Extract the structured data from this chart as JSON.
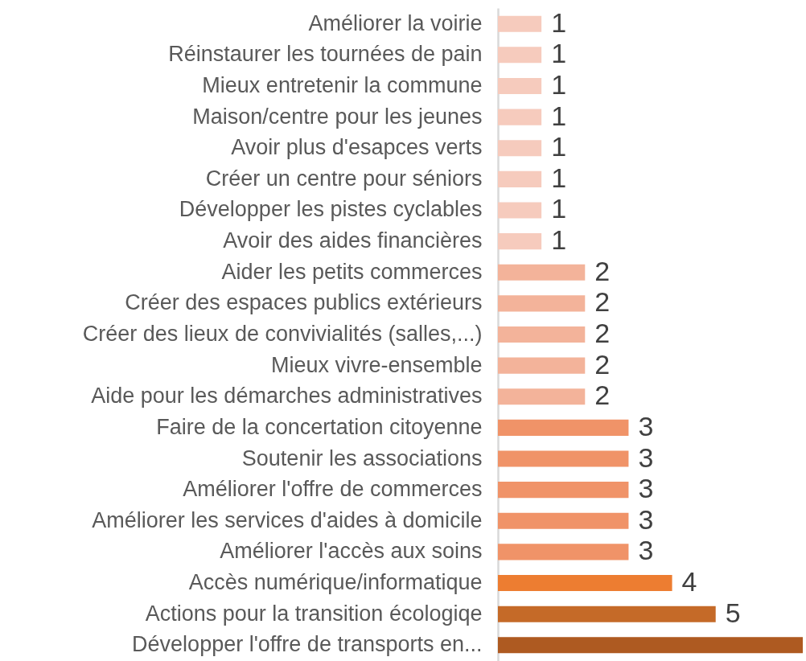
{
  "chart_data": {
    "type": "bar",
    "orientation": "horizontal",
    "categories": [
      "Améliorer la voirie",
      "Réinstaurer les tournées de pain",
      "Mieux entretenir la commune",
      "Maison/centre pour les jeunes",
      "Avoir plus d'esapces verts",
      "Créer un centre pour séniors",
      "Développer les pistes cyclables",
      "Avoir des aides financières",
      "Aider les petits commerces",
      "Créer des espaces publics extérieurs",
      "Créer des lieux de convivialités (salles,...)",
      "Mieux vivre-ensemble",
      "Aide pour les démarches administratives",
      "Faire de la concertation citoyenne",
      "Soutenir les associations",
      "Améliorer l'offre de commerces",
      "Améliorer les services d'aides à domicile",
      "Améliorer l'accès aux soins",
      "Accès numérique/informatique",
      "Actions pour la transition écologiqe",
      "Développer l'offre de transports en..."
    ],
    "values": [
      1,
      1,
      1,
      1,
      1,
      1,
      1,
      1,
      2,
      2,
      2,
      2,
      2,
      3,
      3,
      3,
      3,
      3,
      4,
      5,
      7
    ],
    "colors": [
      "#f6cbbd",
      "#f6cbbd",
      "#f6cbbd",
      "#f6cbbd",
      "#f6cbbd",
      "#f6cbbd",
      "#f6cbbd",
      "#f6cbbd",
      "#f3b39a",
      "#f3b39a",
      "#f3b39a",
      "#f3b39a",
      "#f3b39a",
      "#f09368",
      "#f09368",
      "#f09368",
      "#f09368",
      "#f09368",
      "#ed7d31",
      "#c56a28",
      "#ae5a21"
    ],
    "value_labels": [
      "1",
      "1",
      "1",
      "1",
      "1",
      "1",
      "1",
      "1",
      "2",
      "2",
      "2",
      "2",
      "2",
      "3",
      "3",
      "3",
      "3",
      "3",
      "4",
      "5",
      null
    ]
  }
}
